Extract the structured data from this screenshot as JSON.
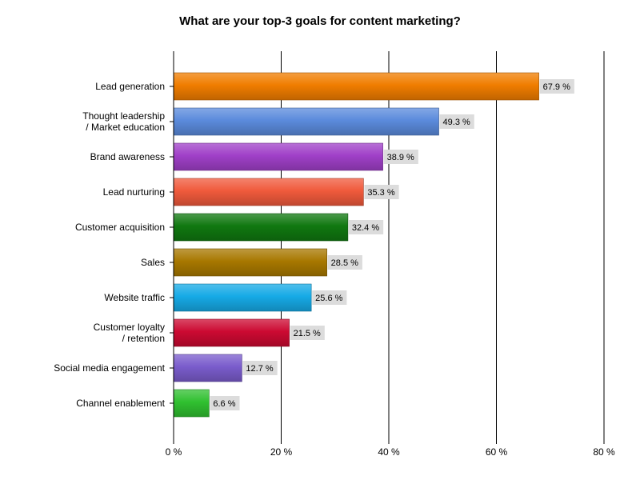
{
  "chart_data": {
    "type": "bar",
    "orientation": "horizontal",
    "title": "What are your top-3 goals for content marketing?",
    "xlabel": "",
    "ylabel": "",
    "xlim": [
      0,
      80
    ],
    "grid": true,
    "tick_values": [
      0,
      20,
      40,
      60,
      80
    ],
    "tick_labels": [
      "0 %",
      "20 %",
      "40 %",
      "60 %",
      "80 %"
    ],
    "categories": [
      [
        "Lead generation"
      ],
      [
        "Thought leadership",
        "/ Market education"
      ],
      [
        "Brand awareness"
      ],
      [
        "Lead nurturing"
      ],
      [
        "Customer acquisition"
      ],
      [
        "Sales"
      ],
      [
        "Website traffic"
      ],
      [
        "Customer loyalty",
        "/ retention"
      ],
      [
        "Social media engagement"
      ],
      [
        "Channel enablement"
      ]
    ],
    "values": [
      67.9,
      49.3,
      38.9,
      35.3,
      32.4,
      28.5,
      25.6,
      21.5,
      12.7,
      6.6
    ],
    "value_labels": [
      "67.9 %",
      "49.3 %",
      "38.9 %",
      "35.3 %",
      "32.4 %",
      "28.5 %",
      "25.6 %",
      "21.5 %",
      "12.7 %",
      "6.6 %"
    ],
    "colors": [
      "#f07d00",
      "#5b8bdc",
      "#a040c8",
      "#f05a3c",
      "#107810",
      "#a87800",
      "#16aae6",
      "#cc0a32",
      "#7a5ccc",
      "#30c030"
    ]
  }
}
